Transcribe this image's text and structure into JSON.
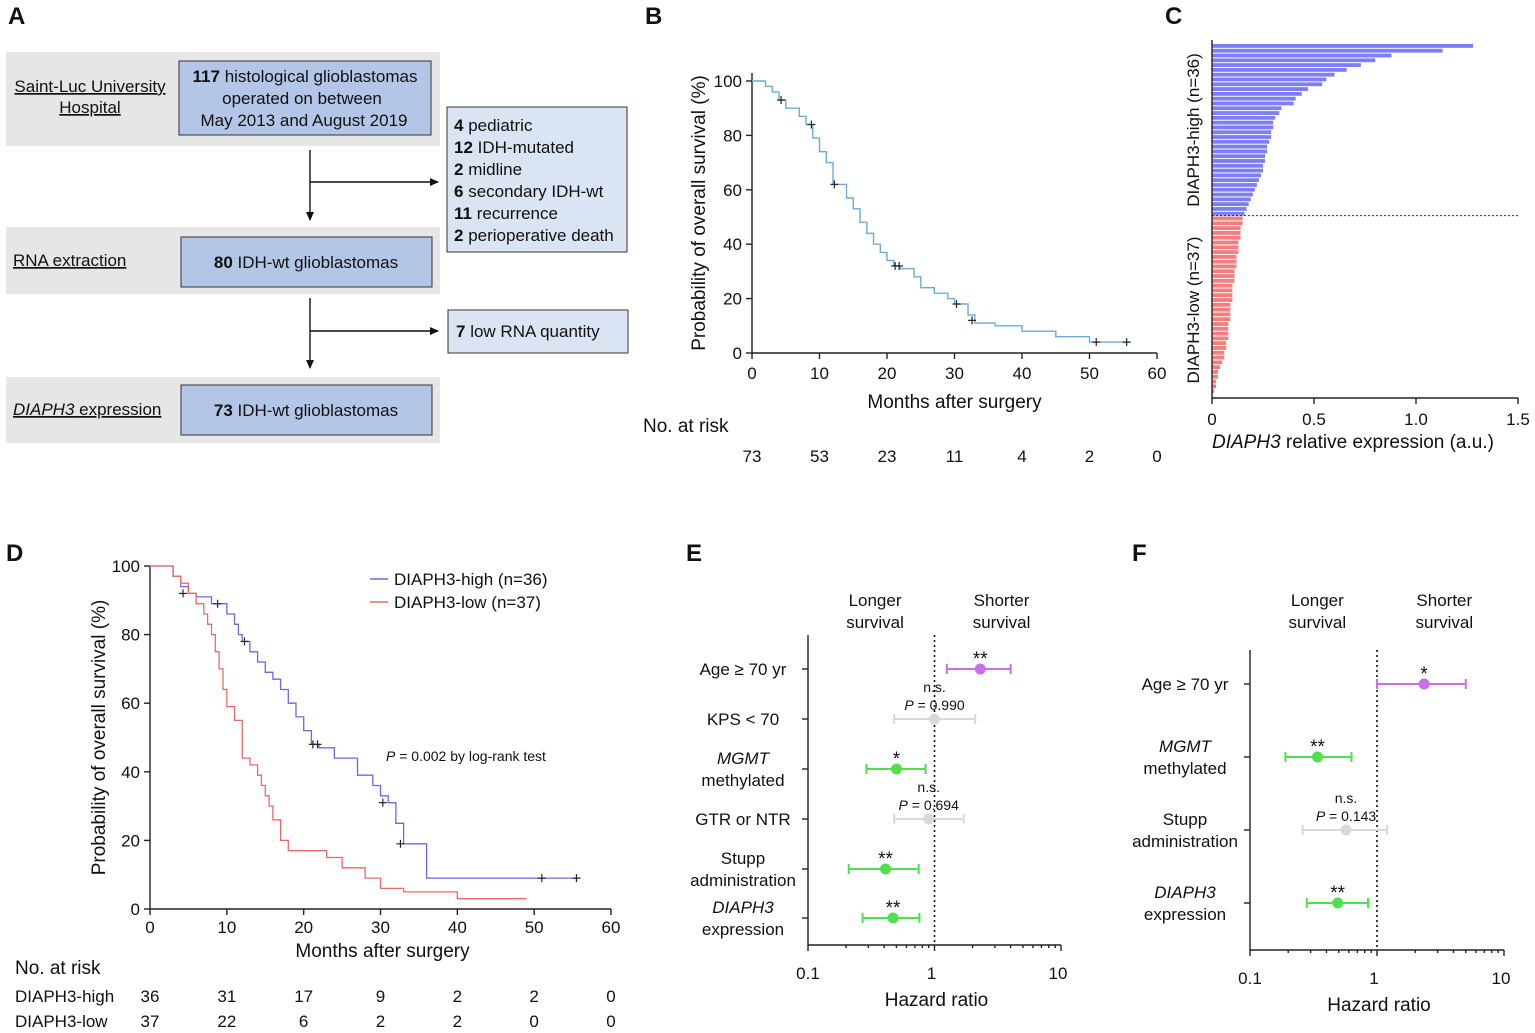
{
  "panels": {
    "a": "A",
    "b": "B",
    "c": "C",
    "d": "D",
    "e": "E",
    "f": "F"
  },
  "flowchart": {
    "row1_label": [
      "Saint-Luc University",
      "Hospital"
    ],
    "row1_box": {
      "num": "117",
      "l1": " histological glioblastomas",
      "l2": "operated on between",
      "l3": "May 2013 and August 2019"
    },
    "exclusions": [
      {
        "num": "4",
        "text": " pediatric"
      },
      {
        "num": "12",
        "text": " IDH-mutated"
      },
      {
        "num": "2",
        "text": " midline"
      },
      {
        "num": "6",
        "text": " secondary IDH-wt"
      },
      {
        "num": "11",
        "text": " recurrence"
      },
      {
        "num": "2",
        "text": " perioperative death"
      }
    ],
    "row2_label": "RNA extraction",
    "row2_box": {
      "num": "80",
      "text": " IDH-wt glioblastomas"
    },
    "exclusion2": {
      "num": "7",
      "text": " low RNA quantity"
    },
    "row3_label": {
      "italic": "DIAPH3",
      "rest": " expression"
    },
    "row3_box": {
      "num": "73",
      "text": " IDH-wt glioblastomas"
    }
  },
  "chart_data": [
    {
      "id": "B",
      "type": "line",
      "ylabel": "Probability of overall survival (%)",
      "xlabel": "Months after surgery",
      "xlim": [
        0,
        60
      ],
      "ylim": [
        0,
        100
      ],
      "xticks": [
        0,
        10,
        20,
        30,
        40,
        50,
        60
      ],
      "yticks": [
        0,
        20,
        40,
        60,
        80,
        100
      ],
      "color": "#6aaed6",
      "x": [
        0,
        2,
        3,
        4,
        5,
        7,
        8,
        9,
        10,
        11,
        12,
        14,
        15,
        16,
        17,
        18,
        19,
        20,
        21,
        22,
        24,
        25,
        27,
        29,
        30,
        32,
        33,
        36,
        40,
        45,
        50,
        56
      ],
      "y": [
        100,
        98,
        96,
        93,
        90,
        87,
        84,
        79,
        74,
        70,
        62,
        57,
        53,
        48,
        44,
        40,
        37,
        34,
        32,
        31,
        28,
        24,
        22,
        20,
        18,
        14,
        11,
        10,
        8,
        6,
        4,
        4
      ],
      "censor_x": [
        4.3,
        8.8,
        12.2,
        21.2,
        21.8,
        30.3,
        32.6,
        51,
        55.5
      ],
      "censor_y": [
        93,
        84,
        62,
        32,
        32,
        18,
        12,
        4,
        4
      ],
      "risk_title": "No. at risk",
      "risk_x": [
        0,
        10,
        20,
        30,
        40,
        50,
        60
      ],
      "risk_values": [
        "73",
        "53",
        "23",
        "11",
        "4",
        "2",
        "0"
      ]
    },
    {
      "id": "C",
      "type": "bar",
      "xlabel_italic": "DIAPH3",
      "xlabel_rest": " relative expression (a.u.)",
      "xlim": [
        0,
        1.5
      ],
      "xticks": [
        "0",
        "0.5",
        "1.0",
        "1.5"
      ],
      "group_high_label": "DIAPH3-high (n=36)",
      "group_low_label": "DIAPH3-low (n=37)",
      "high_color": "#7e7ef4",
      "low_color": "#f47e7e",
      "high_values": [
        1.28,
        1.13,
        0.88,
        0.8,
        0.73,
        0.66,
        0.6,
        0.56,
        0.54,
        0.47,
        0.44,
        0.41,
        0.4,
        0.34,
        0.33,
        0.31,
        0.3,
        0.3,
        0.29,
        0.29,
        0.28,
        0.27,
        0.27,
        0.26,
        0.26,
        0.25,
        0.25,
        0.24,
        0.23,
        0.22,
        0.21,
        0.2,
        0.19,
        0.18,
        0.17,
        0.16
      ],
      "low_values": [
        0.15,
        0.15,
        0.14,
        0.14,
        0.14,
        0.13,
        0.13,
        0.13,
        0.12,
        0.12,
        0.12,
        0.11,
        0.11,
        0.11,
        0.1,
        0.1,
        0.1,
        0.1,
        0.09,
        0.09,
        0.09,
        0.09,
        0.08,
        0.08,
        0.08,
        0.08,
        0.07,
        0.07,
        0.06,
        0.06,
        0.05,
        0.04,
        0.03,
        0.03,
        0.02,
        0.02,
        0.01
      ]
    },
    {
      "id": "D",
      "type": "line",
      "ylabel": "Probability of overall survival (%)",
      "xlabel": "Months after surgery",
      "xlim": [
        0,
        60
      ],
      "ylim": [
        0,
        100
      ],
      "xticks": [
        0,
        10,
        20,
        30,
        40,
        50,
        60
      ],
      "yticks": [
        0,
        20,
        40,
        60,
        80,
        100
      ],
      "annotation_p": "P",
      "annotation_rest": " = 0.002 by log-rank test",
      "series": [
        {
          "name": "DIAPH3-high (n=36)",
          "color": "#6a6ae6",
          "x": [
            0,
            3,
            4,
            5,
            6,
            8,
            9,
            10,
            11,
            11.5,
            12,
            13,
            14,
            15,
            16,
            17,
            18,
            19,
            20,
            21,
            22,
            24,
            27,
            29,
            30,
            31,
            32,
            33,
            36,
            50,
            56
          ],
          "y": [
            100,
            97,
            94,
            92,
            91,
            89,
            89,
            86,
            83,
            80,
            78,
            75,
            72,
            69,
            67,
            64,
            60,
            56,
            52,
            48,
            47,
            44,
            39,
            36,
            33,
            31,
            25,
            19,
            9,
            9,
            9
          ],
          "censor_x": [
            4.3,
            8.8,
            12.3,
            21.2,
            21.8,
            30.3,
            32.6,
            51,
            55.5
          ],
          "censor_y": [
            92,
            89,
            78,
            48,
            48,
            31,
            19,
            9,
            9
          ]
        },
        {
          "name": "DIAPH3-low (n=37)",
          "color": "#ea6a6a",
          "x": [
            0,
            3,
            4,
            5,
            6,
            7,
            7.5,
            8,
            8.5,
            9,
            9.5,
            10,
            11,
            12,
            13,
            14,
            14.5,
            15,
            15.5,
            16,
            17,
            18,
            20,
            23,
            25,
            28,
            30,
            33,
            40,
            45,
            49
          ],
          "y": [
            100,
            97,
            95,
            92,
            89,
            86,
            83,
            80,
            75,
            70,
            64,
            59,
            55,
            44,
            42,
            39,
            36,
            33,
            30,
            26,
            20,
            17,
            17,
            15,
            12,
            9,
            6,
            5,
            3,
            3,
            3
          ]
        }
      ],
      "risk_title": "No. at risk",
      "risk_x": [
        0,
        10,
        20,
        30,
        40,
        50,
        60
      ],
      "risk_rows": [
        {
          "label": "DIAPH3-high",
          "values": [
            "36",
            "31",
            "17",
            "9",
            "2",
            "2",
            "0"
          ]
        },
        {
          "label": "DIAPH3-low",
          "values": [
            "37",
            "22",
            "6",
            "2",
            "2",
            "0",
            "0"
          ]
        }
      ]
    },
    {
      "id": "E",
      "type": "scatter",
      "title_left": [
        "Longer",
        "survival"
      ],
      "title_right": [
        "Shorter",
        "survival"
      ],
      "xlabel": "Hazard ratio",
      "xscale": "log",
      "xlim": [
        0.1,
        10
      ],
      "xticks": [
        "0.1",
        "1",
        "10"
      ],
      "rows": [
        {
          "label": [
            "Age ≥ 70 yr"
          ],
          "hr": 2.3,
          "lo": 1.25,
          "hi": 4.0,
          "sig": "**",
          "color": "#c76ee8"
        },
        {
          "label": [
            "KPS < 70"
          ],
          "hr": 1.0,
          "lo": 0.48,
          "hi": 2.1,
          "sig": "n.s.",
          "p": "0.990",
          "color": "#d9d9d9"
        },
        {
          "label": [
            "MGMT",
            "methylated"
          ],
          "italic_first": true,
          "hr": 0.5,
          "lo": 0.29,
          "hi": 0.85,
          "sig": "*",
          "color": "#4de24d"
        },
        {
          "label": [
            "GTR or NTR"
          ],
          "hr": 0.9,
          "lo": 0.48,
          "hi": 1.7,
          "sig": "n.s.",
          "p": "0.694",
          "color": "#d9d9d9"
        },
        {
          "label": [
            "Stupp",
            "administration"
          ],
          "hr": 0.41,
          "lo": 0.21,
          "hi": 0.75,
          "sig": "**",
          "color": "#4de24d"
        },
        {
          "label": [
            "DIAPH3",
            "expression"
          ],
          "italic_first": true,
          "hr": 0.47,
          "lo": 0.27,
          "hi": 0.76,
          "sig": "**",
          "color": "#4de24d"
        }
      ]
    },
    {
      "id": "F",
      "type": "scatter",
      "title_left": [
        "Longer",
        "survival"
      ],
      "title_right": [
        "Shorter",
        "survival"
      ],
      "xlabel": "Hazard ratio",
      "xscale": "log",
      "xlim": [
        0.1,
        10
      ],
      "xticks": [
        "0.1",
        "1",
        "10"
      ],
      "rows": [
        {
          "label": [
            "Age ≥ 70 yr"
          ],
          "hr": 2.35,
          "lo": 1.0,
          "hi": 5.0,
          "sig": "*",
          "color": "#c76ee8"
        },
        {
          "label": [
            "MGMT",
            "methylated"
          ],
          "italic_first": true,
          "hr": 0.34,
          "lo": 0.19,
          "hi": 0.63,
          "sig": "**",
          "color": "#4de24d"
        },
        {
          "label": [
            "Stupp",
            "administration"
          ],
          "hr": 0.57,
          "lo": 0.26,
          "hi": 1.2,
          "sig": "n.s.",
          "p": "0.143",
          "color": "#d9d9d9"
        },
        {
          "label": [
            "DIAPH3",
            "expression"
          ],
          "italic_first": true,
          "hr": 0.49,
          "lo": 0.28,
          "hi": 0.85,
          "sig": "**",
          "color": "#4de24d"
        }
      ]
    }
  ]
}
